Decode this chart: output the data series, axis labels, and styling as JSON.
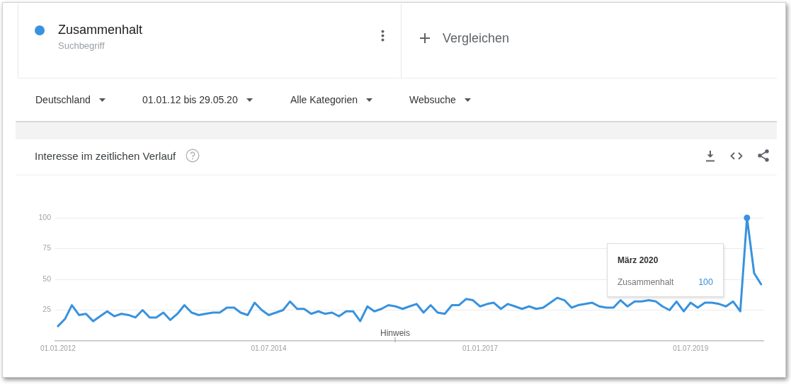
{
  "chart_data": {
    "type": "line",
    "title": "Interesse im zeitlichen Verlauf",
    "annotations": [
      "Suchbegriff",
      "Vergleichen",
      "Deutschland",
      "01.01.12 bis 29.05.20",
      "Alle Kategorien",
      "Websuche",
      "Hinweis",
      "März 2020",
      "Zusammenhalt",
      "100"
    ],
    "x": [
      "2012-01",
      "2012-02",
      "2012-03",
      "2012-04",
      "2012-05",
      "2012-06",
      "2012-07",
      "2012-08",
      "2012-09",
      "2012-10",
      "2012-11",
      "2012-12",
      "2013-01",
      "2013-02",
      "2013-03",
      "2013-04",
      "2013-05",
      "2013-06",
      "2013-07",
      "2013-08",
      "2013-09",
      "2013-10",
      "2013-11",
      "2013-12",
      "2014-01",
      "2014-02",
      "2014-03",
      "2014-04",
      "2014-05",
      "2014-06",
      "2014-07",
      "2014-08",
      "2014-09",
      "2014-10",
      "2014-11",
      "2014-12",
      "2015-01",
      "2015-02",
      "2015-03",
      "2015-04",
      "2015-05",
      "2015-06",
      "2015-07",
      "2015-08",
      "2015-09",
      "2015-10",
      "2015-11",
      "2015-12",
      "2016-01",
      "2016-02",
      "2016-03",
      "2016-04",
      "2016-05",
      "2016-06",
      "2016-07",
      "2016-08",
      "2016-09",
      "2016-10",
      "2016-11",
      "2016-12",
      "2017-01",
      "2017-02",
      "2017-03",
      "2017-04",
      "2017-05",
      "2017-06",
      "2017-07",
      "2017-08",
      "2017-09",
      "2017-10",
      "2017-11",
      "2017-12",
      "2018-01",
      "2018-02",
      "2018-03",
      "2018-04",
      "2018-05",
      "2018-06",
      "2018-07",
      "2018-08",
      "2018-09",
      "2018-10",
      "2018-11",
      "2018-12",
      "2019-01",
      "2019-02",
      "2019-03",
      "2019-04",
      "2019-05",
      "2019-06",
      "2019-07",
      "2019-08",
      "2019-09",
      "2019-10",
      "2019-11",
      "2019-12",
      "2020-01",
      "2020-02",
      "2020-03",
      "2020-04",
      "2020-05"
    ],
    "series": [
      {
        "name": "Zusammenhalt",
        "color": "#3892de",
        "values": [
          12,
          18,
          29,
          21,
          22,
          16,
          20,
          24,
          20,
          22,
          21,
          19,
          25,
          19,
          19,
          23,
          17,
          22,
          29,
          23,
          21,
          22,
          23,
          23,
          27,
          27,
          23,
          21,
          31,
          25,
          21,
          23,
          25,
          32,
          26,
          26,
          22,
          24,
          22,
          23,
          20,
          24,
          24,
          16,
          28,
          24,
          26,
          29,
          28,
          26,
          28,
          30,
          23,
          29,
          23,
          22,
          29,
          29,
          34,
          33,
          28,
          30,
          31,
          26,
          30,
          28,
          26,
          28,
          26,
          27,
          31,
          35,
          33,
          27,
          29,
          30,
          31,
          28,
          27,
          27,
          33,
          28,
          32,
          32,
          33,
          32,
          28,
          25,
          32,
          24,
          31,
          27,
          31,
          31,
          30,
          28,
          32,
          24,
          100,
          55,
          46
        ]
      },
      {
        "type": "scatter",
        "color": "#3892de",
        "marker": "circle",
        "x": [
          "2020-03"
        ],
        "values": [
          100
        ]
      }
    ],
    "xlim": [
      "2011-12-20",
      "2020-05-11"
    ],
    "xticks": [
      {
        "value": "2012-01-01",
        "label": "01.01.2012"
      },
      {
        "value": "2014-07-01",
        "label": "01.07.2014"
      },
      {
        "value": "2017-01-01",
        "label": "01.01.2017"
      },
      {
        "value": "2019-07-01",
        "label": "01.07.2019"
      }
    ],
    "ylim": [
      0,
      100
    ],
    "yticks": [
      {
        "value": 0,
        "label": null
      },
      25,
      50,
      75,
      100
    ],
    "grid": "y",
    "legend": "top left",
    "marker": "none",
    "line_style": "solid"
  }
}
